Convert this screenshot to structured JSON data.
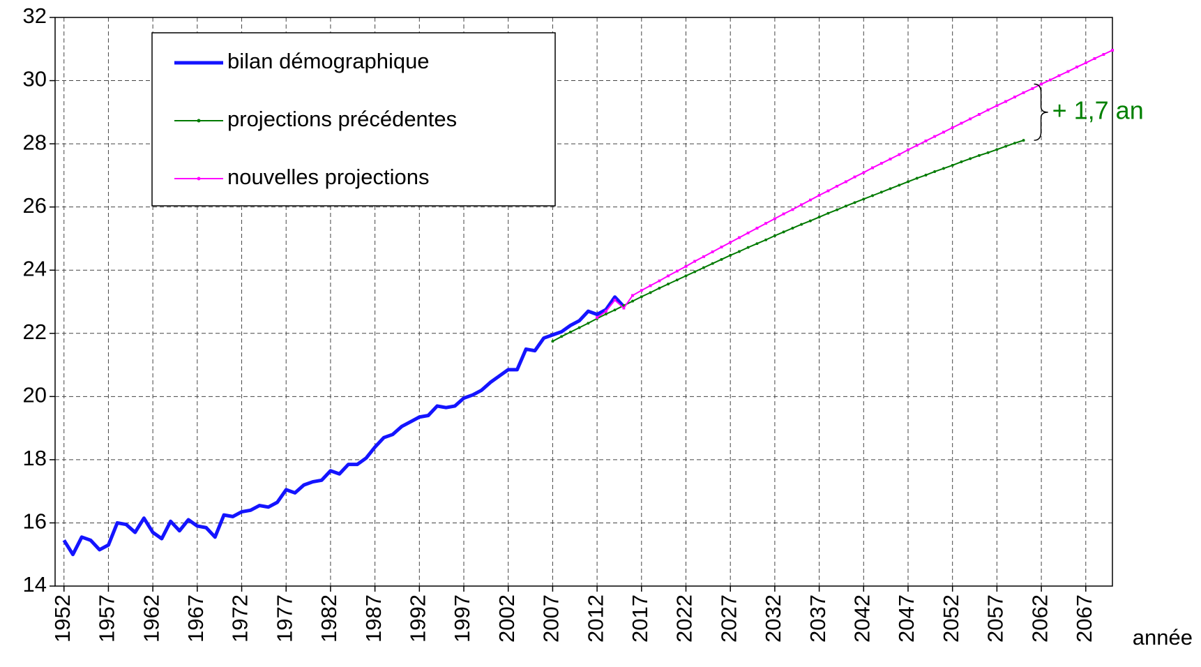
{
  "chart_data": {
    "type": "line",
    "xlabel": "année",
    "annotation": "+ 1,7 an",
    "xlim": [
      1951,
      2070
    ],
    "ylim": [
      14,
      32
    ],
    "xticks": [
      1952,
      1957,
      1962,
      1967,
      1972,
      1977,
      1982,
      1987,
      1992,
      1997,
      2002,
      2007,
      2012,
      2017,
      2022,
      2027,
      2032,
      2037,
      2042,
      2047,
      2052,
      2057,
      2062,
      2067
    ],
    "yticks": [
      14,
      16,
      18,
      20,
      22,
      24,
      26,
      28,
      30,
      32
    ],
    "grid": true,
    "legend": "upper left",
    "series": [
      {
        "name": "bilan démographique",
        "color": "#1414ff",
        "x": [
          1952,
          1953,
          1954,
          1955,
          1956,
          1957,
          1958,
          1959,
          1960,
          1961,
          1962,
          1963,
          1964,
          1965,
          1966,
          1967,
          1968,
          1969,
          1970,
          1971,
          1972,
          1973,
          1974,
          1975,
          1976,
          1977,
          1978,
          1979,
          1980,
          1981,
          1982,
          1983,
          1984,
          1985,
          1986,
          1987,
          1988,
          1989,
          1990,
          1991,
          1992,
          1993,
          1994,
          1995,
          1996,
          1997,
          1998,
          1999,
          2000,
          2001,
          2002,
          2003,
          2004,
          2005,
          2006,
          2007,
          2008,
          2009,
          2010,
          2011,
          2012,
          2013,
          2014,
          2015
        ],
        "values": [
          15.45,
          15.0,
          15.55,
          15.45,
          15.15,
          15.3,
          16.0,
          15.95,
          15.7,
          16.15,
          15.7,
          15.5,
          16.05,
          15.75,
          16.1,
          15.9,
          15.85,
          15.55,
          16.25,
          16.2,
          16.35,
          16.4,
          16.55,
          16.5,
          16.65,
          17.05,
          16.95,
          17.2,
          17.3,
          17.35,
          17.65,
          17.55,
          17.85,
          17.85,
          18.05,
          18.4,
          18.7,
          18.8,
          19.05,
          19.2,
          19.35,
          19.4,
          19.7,
          19.65,
          19.7,
          19.95,
          20.05,
          20.2,
          20.45,
          20.65,
          20.85,
          20.85,
          21.5,
          21.45,
          21.85,
          21.95,
          22.05,
          22.25,
          22.4,
          22.7,
          22.6,
          22.75,
          23.15,
          22.85
        ]
      },
      {
        "name": "projections précédentes",
        "color": "#007a00",
        "x": [
          2007,
          2008,
          2009,
          2010,
          2011,
          2012,
          2013,
          2014,
          2015,
          2016,
          2017,
          2018,
          2019,
          2020,
          2021,
          2022,
          2023,
          2024,
          2025,
          2026,
          2027,
          2028,
          2029,
          2030,
          2031,
          2032,
          2033,
          2034,
          2035,
          2036,
          2037,
          2038,
          2039,
          2040,
          2041,
          2042,
          2043,
          2044,
          2045,
          2046,
          2047,
          2048,
          2049,
          2050,
          2051,
          2052,
          2053,
          2054,
          2055,
          2056,
          2057,
          2058,
          2059,
          2060
        ],
        "values": [
          21.75,
          21.9,
          22.04,
          22.18,
          22.32,
          22.47,
          22.61,
          22.74,
          22.88,
          23.02,
          23.16,
          23.29,
          23.43,
          23.56,
          23.69,
          23.82,
          23.95,
          24.08,
          24.21,
          24.34,
          24.47,
          24.59,
          24.72,
          24.84,
          24.96,
          25.09,
          25.21,
          25.33,
          25.45,
          25.56,
          25.68,
          25.8,
          25.91,
          26.03,
          26.14,
          26.25,
          26.36,
          26.47,
          26.58,
          26.69,
          26.8,
          26.91,
          27.01,
          27.12,
          27.22,
          27.32,
          27.43,
          27.53,
          27.63,
          27.72,
          27.82,
          27.92,
          28.02,
          28.11
        ]
      },
      {
        "name": "nouvelles projections",
        "color": "#ff00ff",
        "x": [
          2012,
          2013,
          2014,
          2015,
          2016,
          2017,
          2018,
          2019,
          2020,
          2021,
          2022,
          2023,
          2024,
          2025,
          2026,
          2027,
          2028,
          2029,
          2030,
          2031,
          2032,
          2033,
          2034,
          2035,
          2036,
          2037,
          2038,
          2039,
          2040,
          2041,
          2042,
          2043,
          2044,
          2045,
          2046,
          2047,
          2048,
          2049,
          2050,
          2051,
          2052,
          2053,
          2054,
          2055,
          2056,
          2057,
          2058,
          2059,
          2060,
          2061,
          2062,
          2063,
          2064,
          2065,
          2066,
          2067,
          2068,
          2069,
          2070
        ],
        "values": [
          22.5,
          22.7,
          23.05,
          22.8,
          23.2,
          23.36,
          23.51,
          23.66,
          23.82,
          23.97,
          24.12,
          24.28,
          24.43,
          24.58,
          24.73,
          24.88,
          25.03,
          25.18,
          25.33,
          25.48,
          25.63,
          25.78,
          25.92,
          26.07,
          26.22,
          26.37,
          26.51,
          26.66,
          26.8,
          26.95,
          27.09,
          27.24,
          27.38,
          27.52,
          27.66,
          27.81,
          27.95,
          28.09,
          28.23,
          28.37,
          28.51,
          28.65,
          28.79,
          28.93,
          29.07,
          29.21,
          29.34,
          29.48,
          29.62,
          29.75,
          29.89,
          30.02,
          30.16,
          30.29,
          30.43,
          30.56,
          30.7,
          30.83,
          30.96
        ]
      }
    ]
  }
}
